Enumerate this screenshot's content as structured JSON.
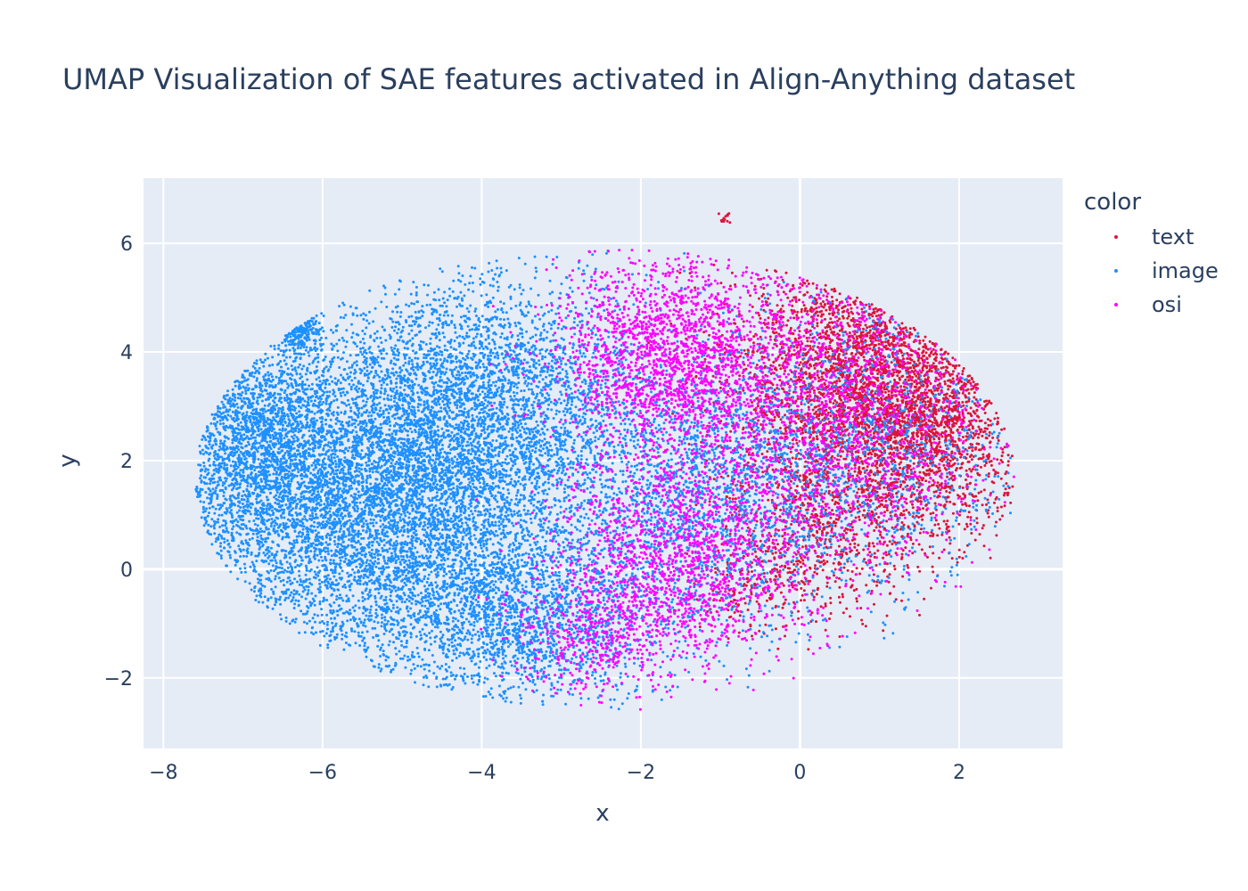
{
  "chart_data": {
    "type": "scatter",
    "title": "UMAP Visualization of SAE features activated in Align-Anything dataset",
    "xlabel": "x",
    "ylabel": "y",
    "xlim": [
      -8.25,
      3.3
    ],
    "ylim": [
      -3.3,
      7.2
    ],
    "x_ticks": [
      -8,
      -6,
      -4,
      -2,
      0,
      2
    ],
    "y_ticks": [
      -2,
      0,
      2,
      4,
      6
    ],
    "x_tick_labels": [
      "−8",
      "−6",
      "−4",
      "−2",
      "0",
      "2"
    ],
    "y_tick_labels": [
      "−2",
      "0",
      "2",
      "4",
      "6"
    ],
    "grid": true,
    "legend": {
      "title": "color",
      "placement": "right"
    },
    "series": [
      {
        "name": "text",
        "color": "#dc143c",
        "clusters": [
          {
            "cx": 0.8,
            "cy": 3.4,
            "sx": 0.85,
            "sy": 1.3,
            "n": 3200
          },
          {
            "cx": 1.7,
            "cy": 2.6,
            "sx": 0.55,
            "sy": 1.0,
            "n": 1000
          },
          {
            "cx": 0.3,
            "cy": 0.6,
            "sx": 0.6,
            "sy": 0.7,
            "n": 500
          },
          {
            "cx": -0.6,
            "cy": -0.4,
            "sx": 0.5,
            "sy": 0.4,
            "n": 200
          },
          {
            "cx": -0.95,
            "cy": 6.45,
            "sx": 0.05,
            "sy": 0.06,
            "n": 14
          }
        ]
      },
      {
        "name": "image",
        "color": "#1e90ff",
        "clusters": [
          {
            "cx": -5.2,
            "cy": 1.2,
            "sx": 1.25,
            "sy": 1.45,
            "n": 7000
          },
          {
            "cx": -4.0,
            "cy": 3.3,
            "sx": 1.0,
            "sy": 1.1,
            "n": 2400
          },
          {
            "cx": -6.9,
            "cy": 2.4,
            "sx": 0.55,
            "sy": 1.1,
            "n": 1600
          },
          {
            "cx": -3.4,
            "cy": -1.0,
            "sx": 0.9,
            "sy": 0.75,
            "n": 1500
          },
          {
            "cx": -1.5,
            "cy": 1.3,
            "sx": 0.9,
            "sy": 1.2,
            "n": 1700
          },
          {
            "cx": 0.6,
            "cy": 2.2,
            "sx": 1.2,
            "sy": 1.4,
            "n": 1300
          },
          {
            "cx": -6.35,
            "cy": 4.7,
            "sx": 0.15,
            "sy": 0.3,
            "n": 180
          }
        ]
      },
      {
        "name": "osi",
        "color": "#ff00ff",
        "clusters": [
          {
            "cx": -1.6,
            "cy": 3.9,
            "sx": 0.75,
            "sy": 1.0,
            "n": 2000
          },
          {
            "cx": -1.5,
            "cy": 0.2,
            "sx": 0.8,
            "sy": 0.95,
            "n": 1500
          },
          {
            "cx": 0.5,
            "cy": 2.8,
            "sx": 1.0,
            "sy": 1.5,
            "n": 1500
          },
          {
            "cx": -2.6,
            "cy": -1.3,
            "sx": 0.55,
            "sy": 0.6,
            "n": 400
          }
        ]
      }
    ]
  }
}
